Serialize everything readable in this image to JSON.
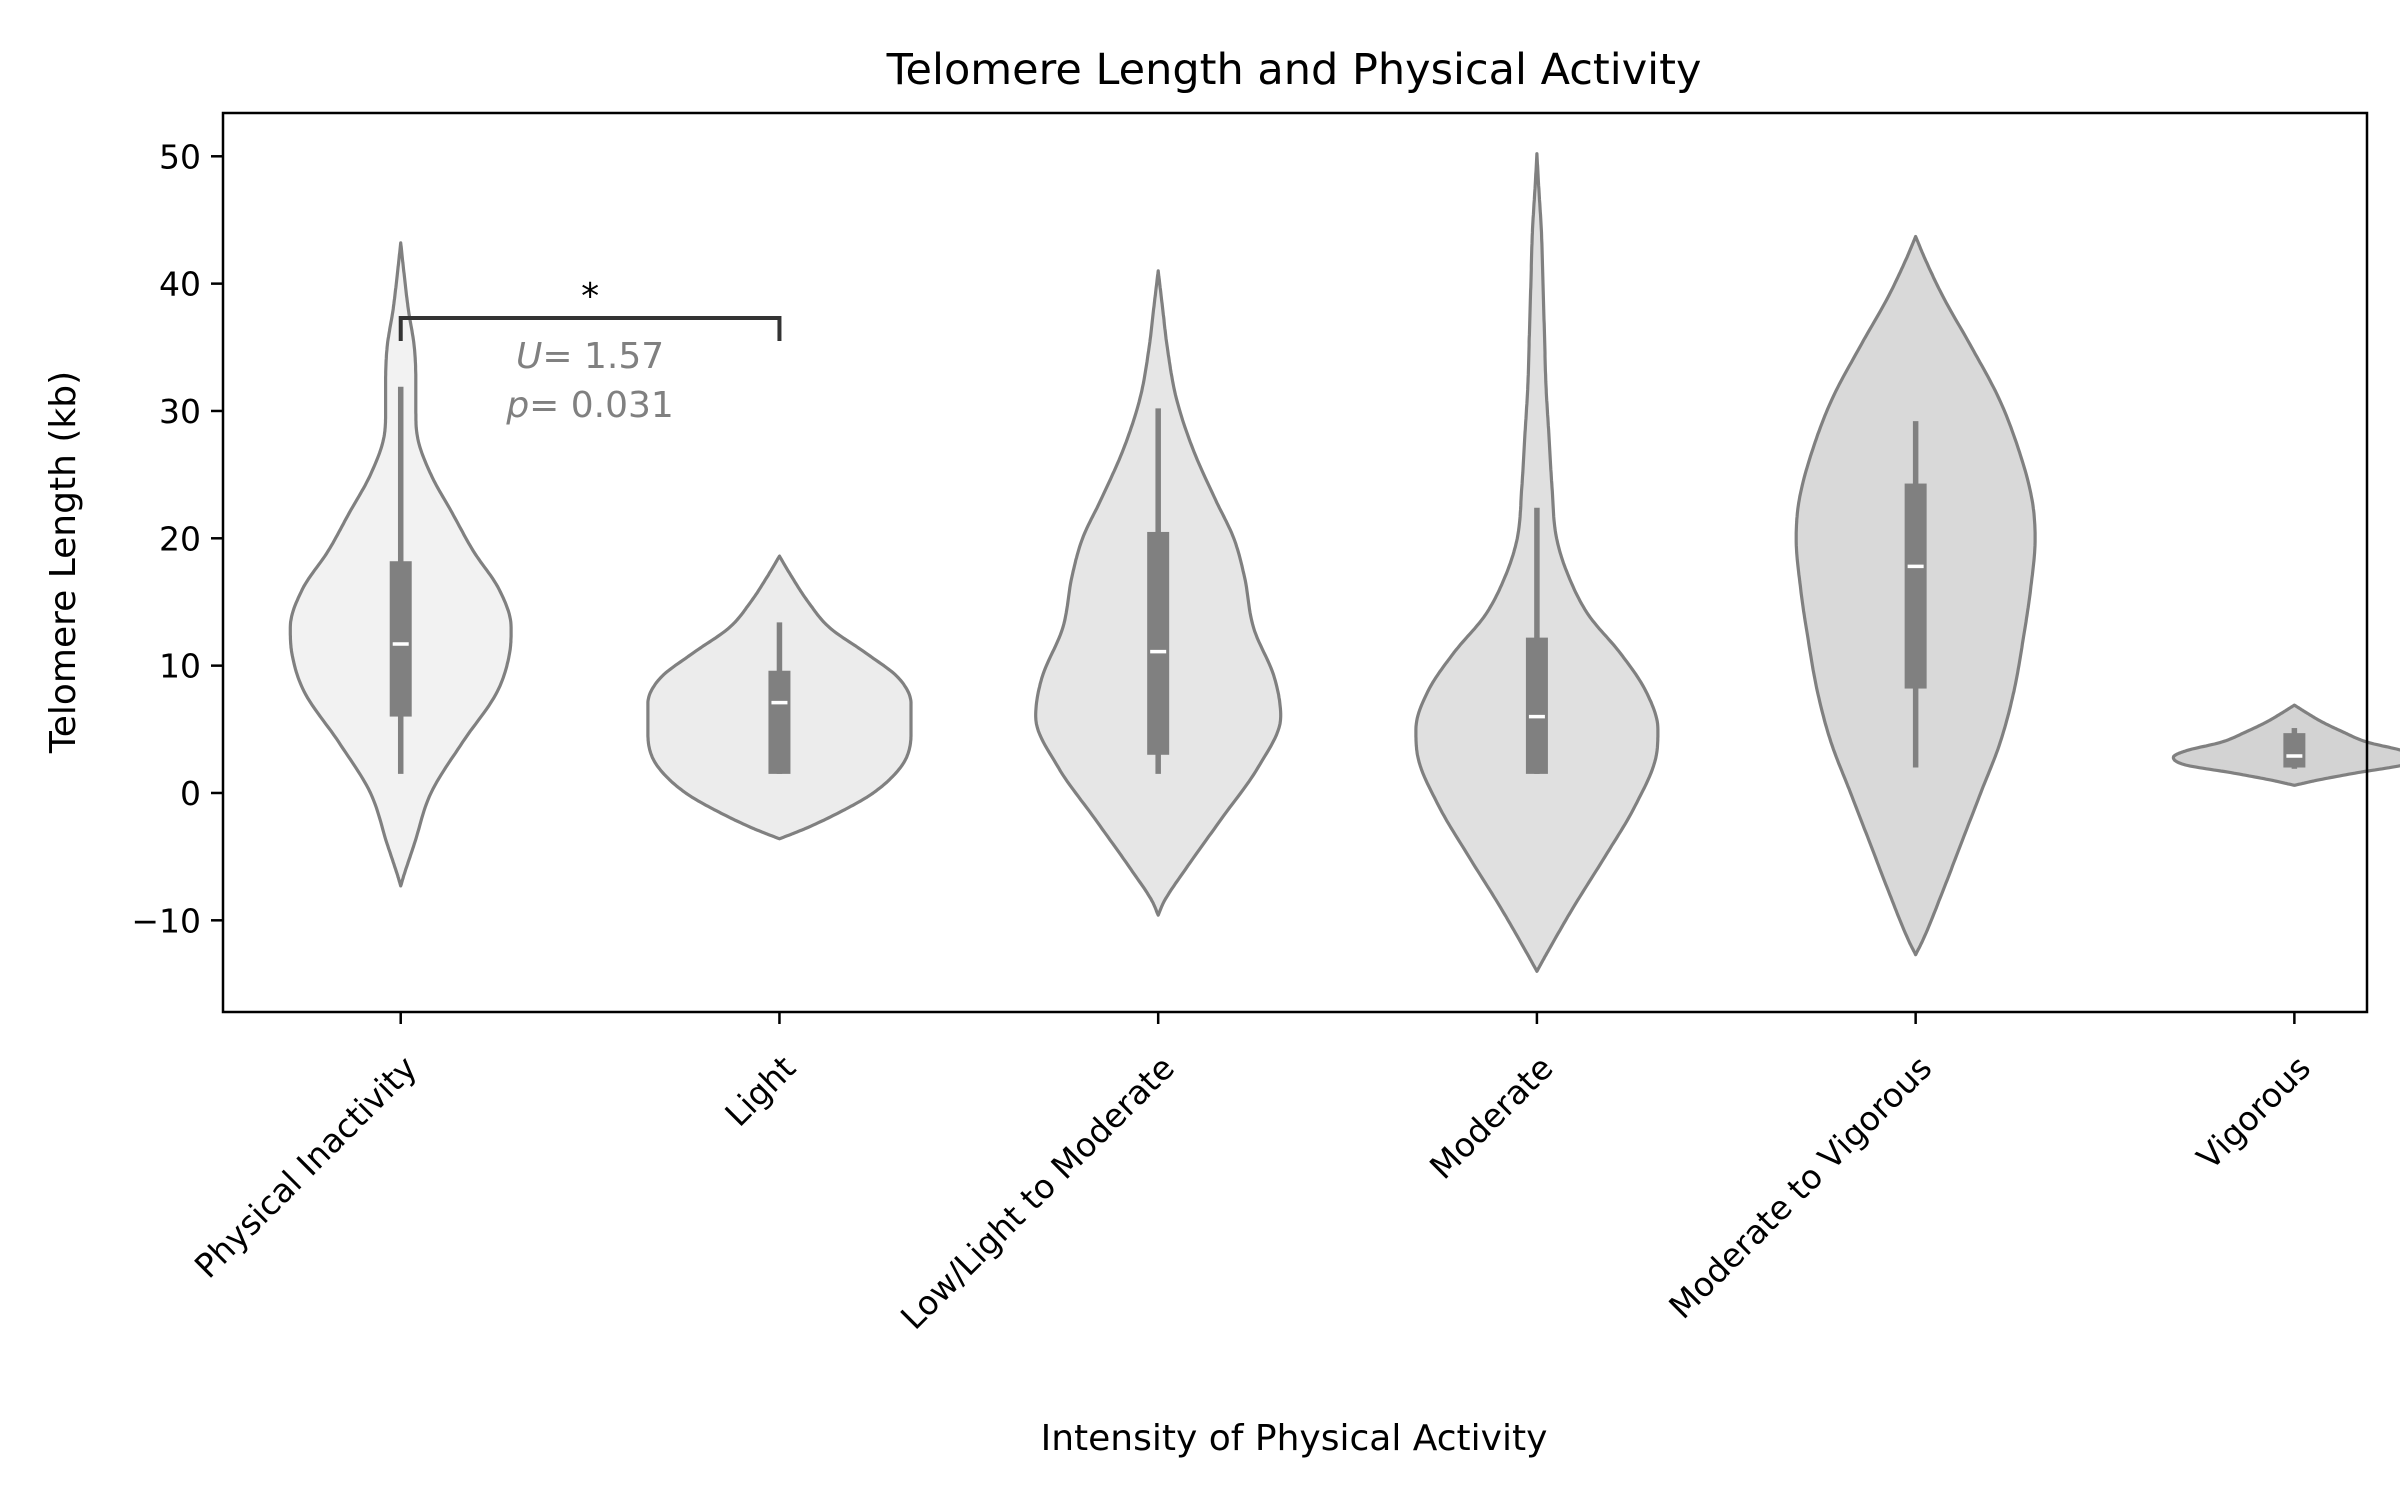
{
  "chart_data": {
    "type": "violin",
    "title": "Telomere Length and Physical Activity",
    "xlabel": "Intensity of Physical Activity",
    "ylabel": "Telomere Length (kb)",
    "ylim": [
      -17.2,
      53.4
    ],
    "yticks": [
      -10,
      0,
      10,
      20,
      30,
      40,
      50
    ],
    "ytick_labels": [
      "−10",
      "0",
      "10",
      "20",
      "30",
      "40",
      "50"
    ],
    "categories": [
      "Physical Inactivity",
      "Light",
      "Low/Light to Moderate",
      "Moderate",
      "Moderate to Vigorous",
      "Vigorous"
    ],
    "fill_colors": [
      "#f2f2f2",
      "#ececec",
      "#e6e6e6",
      "#e0e0e0",
      "#d9d9d9",
      "#d3d3d3"
    ],
    "line_color": "#808080",
    "grid": false,
    "legend": "none",
    "violins": [
      {
        "category": "Physical Inactivity",
        "whisker_low": 1.5,
        "q1": 6.0,
        "median": 11.7,
        "q3": 18.2,
        "whisker_high": 31.9,
        "density_min": -7.3,
        "density_max": 43.2,
        "profile": [
          [
            -7.3,
            0
          ],
          [
            -6.5,
            0.02
          ],
          [
            -4,
            0.09
          ],
          [
            0,
            0.2
          ],
          [
            4,
            0.41
          ],
          [
            8,
            0.64
          ],
          [
            11,
            0.72
          ],
          [
            13,
            0.73
          ],
          [
            16,
            0.65
          ],
          [
            19,
            0.48
          ],
          [
            22,
            0.34
          ],
          [
            25,
            0.2
          ],
          [
            28,
            0.11
          ],
          [
            30,
            0.1
          ],
          [
            32,
            0.1
          ],
          [
            35,
            0.09
          ],
          [
            38,
            0.05
          ],
          [
            41,
            0.02
          ],
          [
            43.2,
            0
          ]
        ]
      },
      {
        "category": "Light",
        "whisker_low": 1.5,
        "q1": 1.5,
        "median": 7.1,
        "q3": 9.6,
        "whisker_high": 13.4,
        "density_min": -3.6,
        "density_max": 18.6,
        "profile": [
          [
            -3.6,
            0
          ],
          [
            -2.8,
            0.17
          ],
          [
            -1.5,
            0.4
          ],
          [
            0,
            0.62
          ],
          [
            2,
            0.8
          ],
          [
            3.5,
            0.86
          ],
          [
            5,
            0.87
          ],
          [
            7,
            0.87
          ],
          [
            9,
            0.79
          ],
          [
            11,
            0.57
          ],
          [
            13,
            0.33
          ],
          [
            15,
            0.19
          ],
          [
            17,
            0.08
          ],
          [
            18.6,
            0
          ]
        ]
      },
      {
        "category": "Low/Light to Moderate",
        "whisker_low": 1.5,
        "q1": 3.0,
        "median": 11.1,
        "q3": 20.5,
        "whisker_high": 30.2,
        "density_min": -9.6,
        "density_max": 41.0,
        "profile": [
          [
            -9.6,
            0
          ],
          [
            -8.5,
            0.04
          ],
          [
            -6,
            0.18
          ],
          [
            -2,
            0.42
          ],
          [
            2,
            0.66
          ],
          [
            6,
            0.81
          ],
          [
            9,
            0.77
          ],
          [
            13,
            0.63
          ],
          [
            17,
            0.57
          ],
          [
            20,
            0.5
          ],
          [
            23,
            0.38
          ],
          [
            27,
            0.23
          ],
          [
            31,
            0.12
          ],
          [
            35,
            0.06
          ],
          [
            38,
            0.03
          ],
          [
            41,
            0
          ]
        ]
      },
      {
        "category": "Moderate",
        "whisker_low": 1.5,
        "q1": 1.5,
        "median": 6.0,
        "q3": 12.2,
        "whisker_high": 22.4,
        "density_min": -14.0,
        "density_max": 50.2,
        "profile": [
          [
            -14,
            0
          ],
          [
            -12.5,
            0.07
          ],
          [
            -9,
            0.24
          ],
          [
            -5,
            0.45
          ],
          [
            -1,
            0.65
          ],
          [
            3,
            0.79
          ],
          [
            5,
            0.8
          ],
          [
            8,
            0.72
          ],
          [
            11,
            0.55
          ],
          [
            14,
            0.34
          ],
          [
            17,
            0.21
          ],
          [
            20,
            0.13
          ],
          [
            24,
            0.1
          ],
          [
            28,
            0.08
          ],
          [
            32,
            0.06
          ],
          [
            36,
            0.05
          ],
          [
            40,
            0.04
          ],
          [
            44,
            0.03
          ],
          [
            48,
            0.01
          ],
          [
            50.2,
            0
          ]
        ]
      },
      {
        "category": "Moderate to Vigorous",
        "whisker_low": 2.0,
        "q1": 8.2,
        "median": 17.8,
        "q3": 24.3,
        "whisker_high": 29.2,
        "density_min": -12.7,
        "density_max": 43.7,
        "profile": [
          [
            -12.7,
            0
          ],
          [
            -11.5,
            0.05
          ],
          [
            -8,
            0.17
          ],
          [
            -4,
            0.3
          ],
          [
            0,
            0.43
          ],
          [
            4,
            0.56
          ],
          [
            8,
            0.65
          ],
          [
            12,
            0.71
          ],
          [
            16,
            0.76
          ],
          [
            20,
            0.79
          ],
          [
            23,
            0.77
          ],
          [
            27,
            0.68
          ],
          [
            31,
            0.55
          ],
          [
            35,
            0.37
          ],
          [
            39,
            0.18
          ],
          [
            42,
            0.06
          ],
          [
            43.7,
            0
          ]
        ]
      },
      {
        "category": "Vigorous",
        "whisker_low": 1.9,
        "q1": 2.0,
        "median": 2.9,
        "q3": 4.7,
        "whisker_high": 5.1,
        "density_min": 0.6,
        "density_max": 6.9,
        "profile": [
          [
            0.6,
            0
          ],
          [
            1.0,
            0.15
          ],
          [
            1.6,
            0.42
          ],
          [
            2.2,
            0.72
          ],
          [
            2.8,
            0.8
          ],
          [
            3.3,
            0.72
          ],
          [
            4,
            0.48
          ],
          [
            4.8,
            0.32
          ],
          [
            5.6,
            0.18
          ],
          [
            6.3,
            0.08
          ],
          [
            6.9,
            0
          ]
        ]
      }
    ],
    "annotation": {
      "from_category": "Physical Inactivity",
      "to_category": "Light",
      "bracket_y": 37.3,
      "star": "*",
      "u_label": "U",
      "u_value": "= 1.57",
      "p_label": "p",
      "p_value": "= 0.031"
    }
  }
}
